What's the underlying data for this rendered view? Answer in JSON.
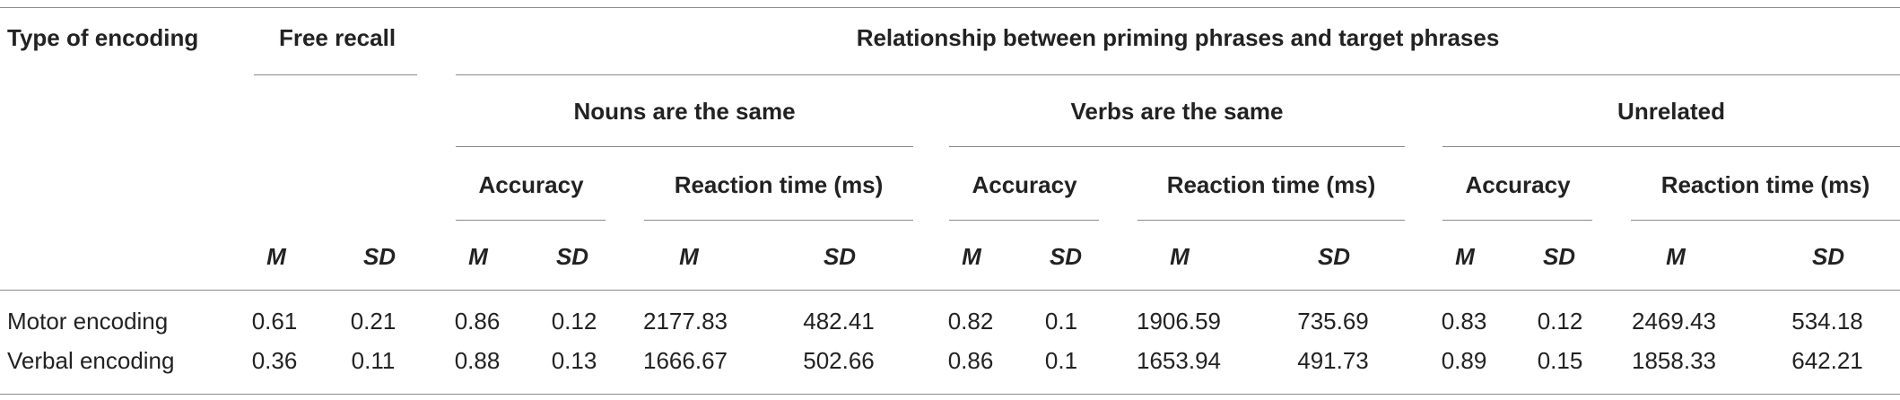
{
  "headers": {
    "type_of_encoding": "Type of encoding",
    "free_recall": "Free recall",
    "relationship": "Relationship between priming phrases and target phrases",
    "groups": [
      "Nouns are the same",
      "Verbs are the same",
      "Unrelated"
    ],
    "accuracy": "Accuracy",
    "reaction_time": "Reaction time (ms)",
    "m": "M",
    "sd": "SD"
  },
  "rows": [
    {
      "label": "Motor encoding",
      "values": [
        "0.61",
        "0.21",
        "0.86",
        "0.12",
        "2177.83",
        "482.41",
        "0.82",
        "0.1",
        "1906.59",
        "735.69",
        "0.83",
        "0.12",
        "2469.43",
        "534.18"
      ]
    },
    {
      "label": "Verbal encoding",
      "values": [
        "0.36",
        "0.11",
        "0.88",
        "0.13",
        "1666.67",
        "502.66",
        "0.86",
        "0.1",
        "1653.94",
        "491.73",
        "0.89",
        "0.15",
        "1858.33",
        "642.21"
      ]
    }
  ]
}
